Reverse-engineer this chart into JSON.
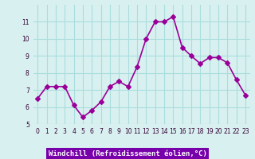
{
  "x": [
    0,
    1,
    2,
    3,
    4,
    5,
    6,
    7,
    8,
    9,
    10,
    11,
    12,
    13,
    14,
    15,
    16,
    17,
    18,
    19,
    20,
    21,
    22,
    23
  ],
  "y": [
    6.5,
    7.2,
    7.2,
    7.2,
    6.1,
    5.4,
    5.8,
    6.3,
    7.2,
    7.5,
    7.2,
    8.35,
    10.0,
    11.0,
    11.0,
    11.3,
    9.5,
    9.0,
    8.55,
    8.9,
    8.9,
    8.6,
    7.6,
    6.7
  ],
  "line_color": "#990099",
  "marker": "D",
  "marker_size": 3,
  "line_width": 1.2,
  "bg_color": "#d8f0f0",
  "grid_color": "#aadddd",
  "xlabel": "Windchill (Refroidissement éolien,°C)",
  "xlabel_color": "#ffffff",
  "xlabel_bg": "#7700aa",
  "ylim": [
    5,
    12
  ],
  "xlim": [
    -0.5,
    23.5
  ],
  "yticks": [
    5,
    6,
    7,
    8,
    9,
    10,
    11
  ],
  "xticks": [
    0,
    1,
    2,
    3,
    4,
    5,
    6,
    7,
    8,
    9,
    10,
    11,
    12,
    13,
    14,
    15,
    16,
    17,
    18,
    19,
    20,
    21,
    22,
    23
  ],
  "tick_label_color": "#330033",
  "tick_fontsize": 5.5
}
